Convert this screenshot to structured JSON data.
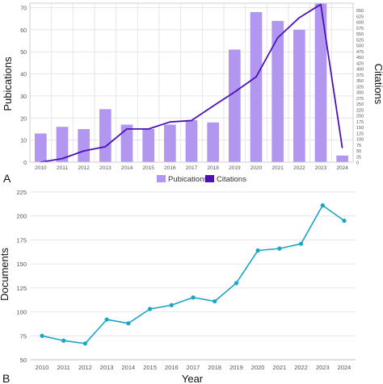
{
  "panels": {
    "a_label": "A",
    "b_label": "B"
  },
  "colors": {
    "publications_bar": "#b197f0",
    "citations_line": "#4b12b8",
    "documents_line": "#1aa5c8",
    "grid": "#e6e6e6",
    "axis_text": "#555555"
  },
  "chart_data": [
    {
      "type": "bar",
      "panel": "A",
      "categories": [
        "2010",
        "2011",
        "2012",
        "2013",
        "2014",
        "2015",
        "2016",
        "2017",
        "2018",
        "2019",
        "2020",
        "2021",
        "2022",
        "2023",
        "2024"
      ],
      "ylabel": "Pubications",
      "y2label": "Citations",
      "ylim": [
        0,
        72
      ],
      "yticks": [
        0,
        10,
        20,
        30,
        40,
        50,
        60,
        70
      ],
      "y2lim": [
        0,
        680
      ],
      "y2ticks": [
        0,
        25,
        50,
        75,
        100,
        125,
        150,
        175,
        200,
        225,
        250,
        275,
        300,
        325,
        350,
        375,
        400,
        425,
        450,
        475,
        500,
        525,
        550,
        575,
        600,
        625,
        650
      ],
      "grid": true,
      "legend_position": "bottom",
      "series": [
        {
          "name": "Pubications",
          "type": "bar",
          "axis": "left",
          "values": [
            13,
            16,
            15,
            24,
            17,
            15,
            17,
            19,
            18,
            51,
            68,
            64,
            60,
            72,
            3
          ]
        },
        {
          "name": "Citations",
          "type": "line",
          "axis": "right",
          "values": [
            0,
            15,
            48,
            66,
            142,
            142,
            172,
            178,
            240,
            300,
            365,
            532,
            618,
            675,
            60
          ]
        }
      ]
    },
    {
      "type": "line",
      "panel": "B",
      "x": [
        "2010",
        "2011",
        "2012",
        "2013",
        "2014",
        "2015",
        "2016",
        "2017",
        "2018",
        "2019",
        "2020",
        "2021",
        "2022",
        "2023",
        "2024"
      ],
      "xlabel": "Year",
      "ylabel": "Documents",
      "ylim": [
        50,
        225
      ],
      "yticks": [
        50,
        75,
        100,
        125,
        150,
        175,
        200,
        225
      ],
      "grid": true,
      "series": [
        {
          "name": "Documents",
          "values": [
            75,
            70,
            67,
            92,
            88,
            103,
            107,
            115,
            111,
            130,
            164,
            166,
            171,
            211,
            195
          ]
        }
      ]
    }
  ]
}
